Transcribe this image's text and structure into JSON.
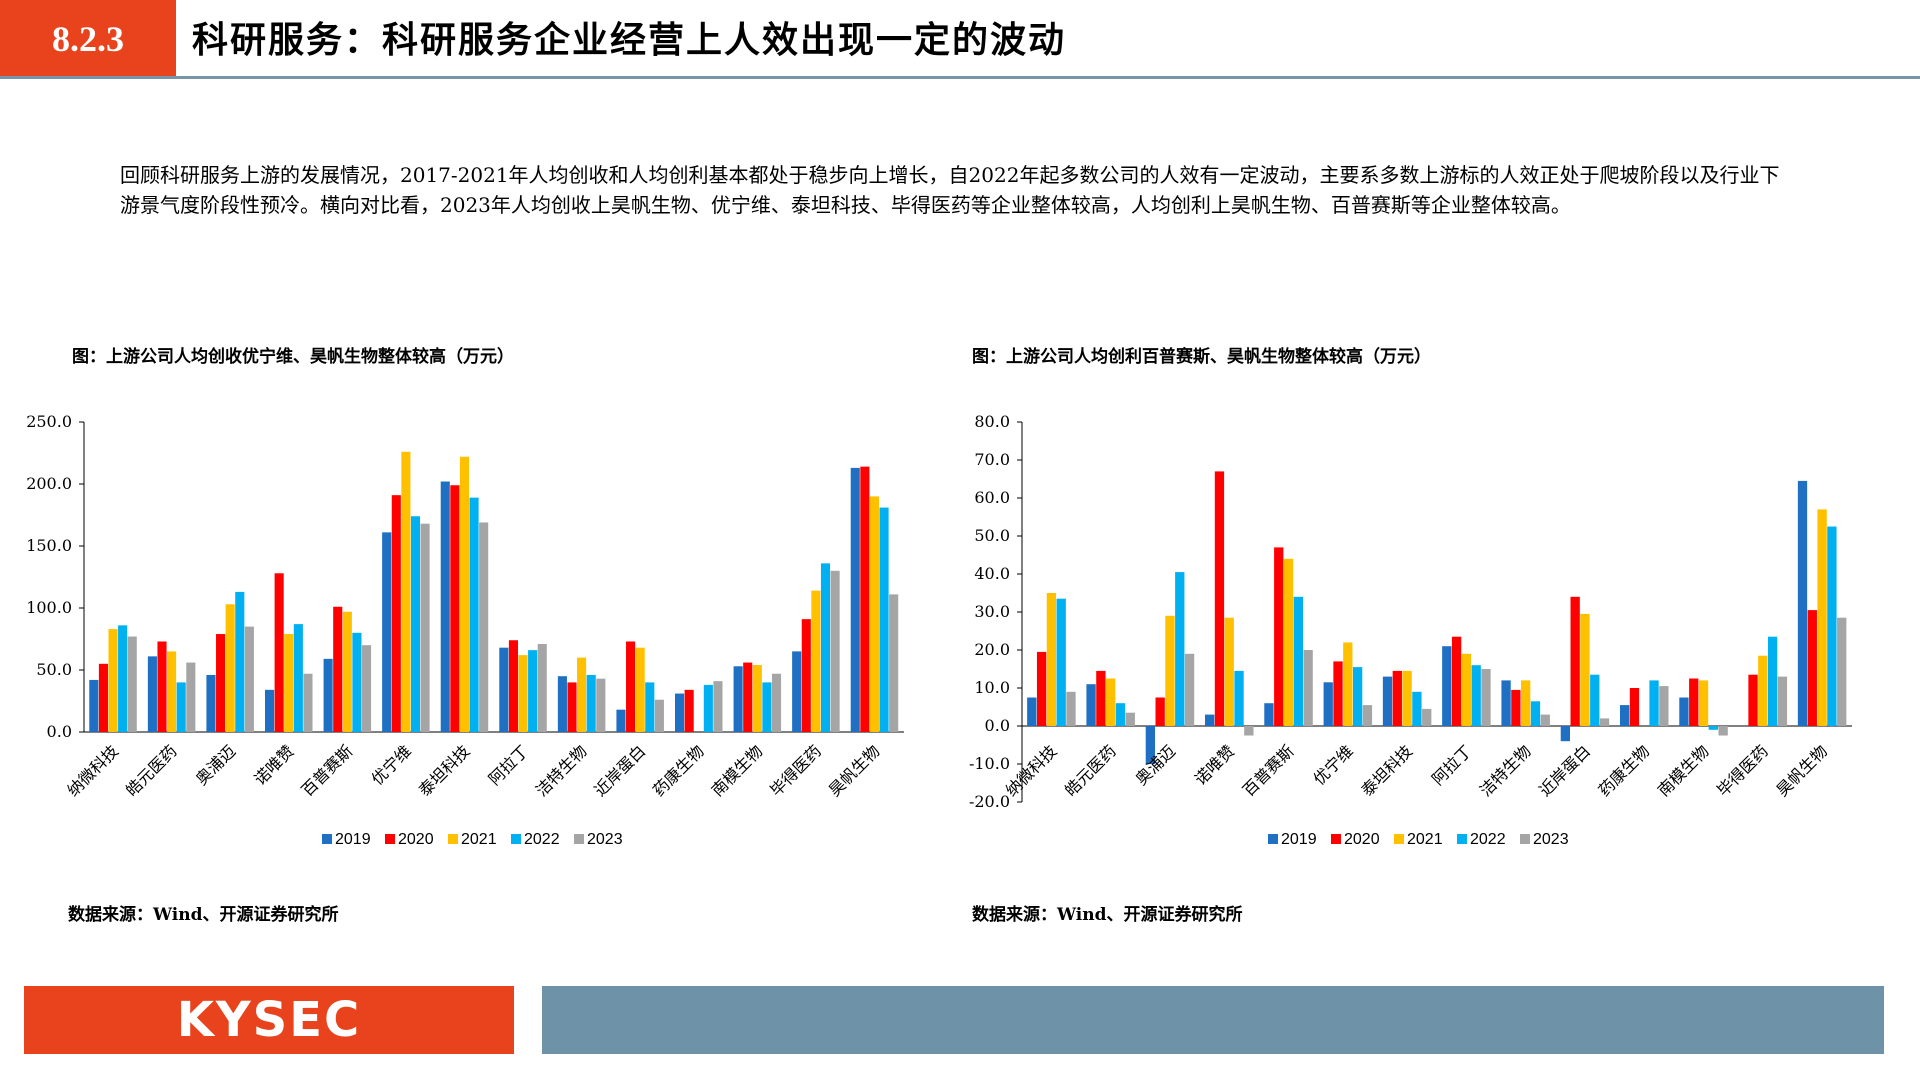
{
  "header": {
    "section_number": "8.2.3",
    "title": "科研服务：科研服务企业经营上人效出现一定的波动"
  },
  "paragraph": "回顾科研服务上游的发展情况，2017-2021年人均创收和人均创利基本都处于稳步向上增长，自2022年起多数公司的人效有一定波动，主要系多数上游标的人效正处于爬坡阶段以及行业下游景气度阶段性预冷。横向对比看，2023年人均创收上昊帆生物、优宁维、泰坦科技、毕得医药等企业整体较高，人均创利上昊帆生物、百普赛斯等企业整体较高。",
  "left_chart": {
    "title": "图：上游公司人均创收优宁维、昊帆生物整体较高（万元）",
    "source": "数据来源：Wind、开源证券研究所"
  },
  "right_chart": {
    "title": "图：上游公司人均创利百普赛斯、昊帆生物整体较高（万元）",
    "source": "数据来源：Wind、开源证券研究所"
  },
  "colors": {
    "accent": "#E8431C",
    "rule": "#7895A8",
    "footer_bar": "#6E93A8",
    "series": [
      "#1F6FC2",
      "#FF0000",
      "#FFC000",
      "#00B0F0",
      "#A5A5A5"
    ]
  },
  "footer": {
    "logo_text": "KYSEC"
  },
  "chart_data": [
    {
      "type": "bar",
      "title": "图：上游公司人均创收优宁维、昊帆生物整体较高（万元）",
      "categories": [
        "纳微科技",
        "皓元医药",
        "奥浦迈",
        "诺唯赞",
        "百普赛斯",
        "优宁维",
        "泰坦科技",
        "阿拉丁",
        "洁特生物",
        "近岸蛋白",
        "药康生物",
        "南模生物",
        "毕得医药",
        "昊帆生物"
      ],
      "series": [
        {
          "name": "2019",
          "values": [
            42,
            61,
            46,
            34,
            59,
            161,
            202,
            68,
            45,
            18,
            31,
            53,
            65,
            213
          ]
        },
        {
          "name": "2020",
          "values": [
            55,
            73,
            79,
            128,
            101,
            191,
            199,
            74,
            40,
            73,
            34,
            56,
            91,
            214
          ]
        },
        {
          "name": "2021",
          "values": [
            83,
            65,
            103,
            79,
            97,
            226,
            222,
            62,
            60,
            68,
            null,
            54,
            114,
            190
          ]
        },
        {
          "name": "2022",
          "values": [
            86,
            40,
            113,
            87,
            80,
            174,
            189,
            66,
            46,
            40,
            38,
            40,
            136,
            181
          ]
        },
        {
          "name": "2023",
          "values": [
            77,
            56,
            85,
            47,
            70,
            168,
            169,
            71,
            43,
            26,
            41,
            47,
            130,
            111
          ]
        }
      ],
      "yticks": [
        "250.0",
        "200.0",
        "150.0",
        "100.0",
        "50.0",
        "0.0"
      ],
      "ylim": [
        0,
        250
      ],
      "xlabel": "",
      "ylabel": "",
      "legend": [
        "2019",
        "2020",
        "2021",
        "2022",
        "2023"
      ]
    },
    {
      "type": "bar",
      "title": "图：上游公司人均创利百普赛斯、昊帆生物整体较高（万元）",
      "categories": [
        "纳微科技",
        "皓元医药",
        "奥浦迈",
        "诺唯赞",
        "百普赛斯",
        "优宁维",
        "泰坦科技",
        "阿拉丁",
        "洁特生物",
        "近岸蛋白",
        "药康生物",
        "南模生物",
        "毕得医药",
        "昊帆生物"
      ],
      "series": [
        {
          "name": "2019",
          "values": [
            7.5,
            11,
            -10,
            3,
            6,
            11.5,
            13,
            21,
            12,
            -4,
            5.5,
            7.5,
            null,
            64.5
          ]
        },
        {
          "name": "2020",
          "values": [
            19.5,
            14.5,
            7.5,
            67,
            47,
            17,
            14.5,
            23.5,
            9.5,
            34,
            10,
            12.5,
            13.5,
            30.5
          ]
        },
        {
          "name": "2021",
          "values": [
            35,
            12.5,
            29,
            28.5,
            44,
            22,
            14.5,
            19,
            12,
            29.5,
            null,
            12,
            18.5,
            57
          ]
        },
        {
          "name": "2022",
          "values": [
            33.5,
            6,
            40.5,
            14.5,
            34,
            15.5,
            9,
            16,
            6.5,
            13.5,
            12,
            -1,
            23.5,
            52.5
          ]
        },
        {
          "name": "2023",
          "values": [
            9,
            3.5,
            19,
            -2.5,
            20,
            5.5,
            4.5,
            15,
            3,
            2,
            10.5,
            -2.5,
            13,
            28.5
          ]
        }
      ],
      "yticks": [
        "80.0",
        "70.0",
        "60.0",
        "50.0",
        "40.0",
        "30.0",
        "20.0",
        "10.0",
        "0.0",
        "-10.0",
        "-20.0"
      ],
      "ylim": [
        -20,
        80
      ],
      "xlabel": "",
      "ylabel": "",
      "legend": [
        "2019",
        "2020",
        "2021",
        "2022",
        "2023"
      ]
    }
  ]
}
